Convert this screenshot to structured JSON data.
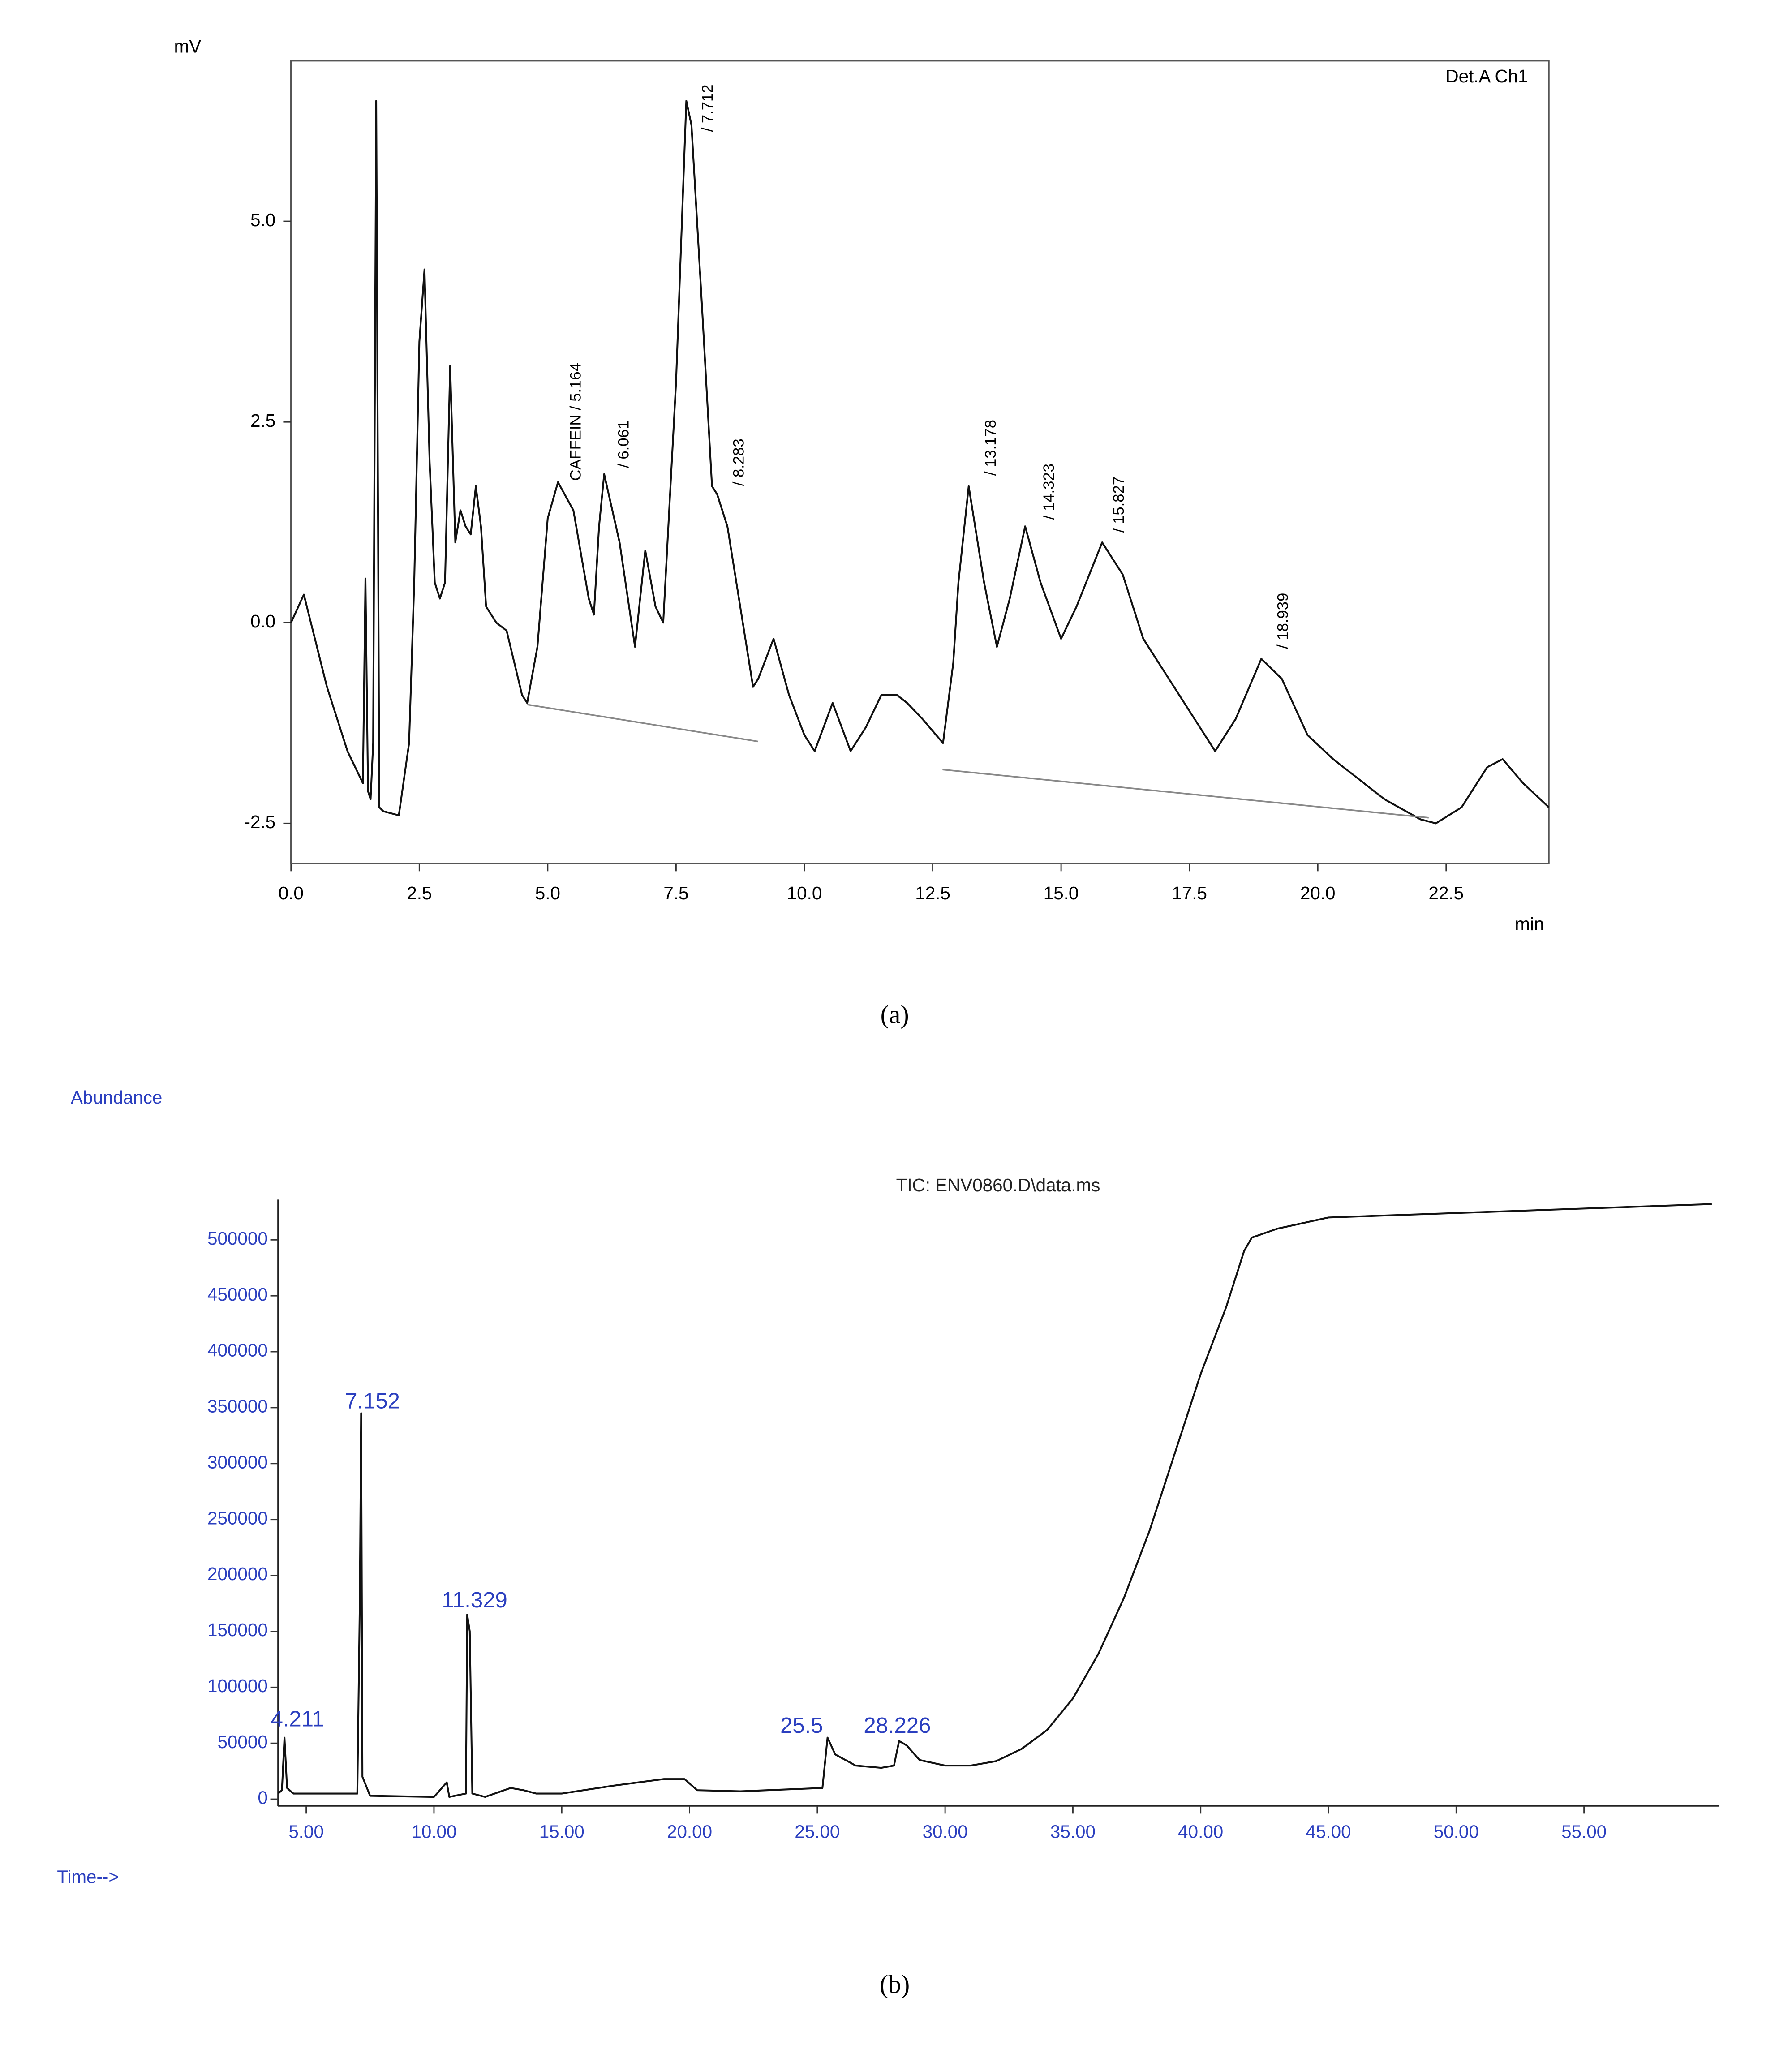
{
  "chart_data": [
    {
      "type": "line",
      "y_label": "mV",
      "x_label": "min",
      "channel_label": "Det.A Ch1",
      "caption": "(a)",
      "xlim": [
        0,
        24.5
      ],
      "ylim": [
        -3,
        7
      ],
      "xticks": [
        {
          "value": 0,
          "label": "0.0"
        },
        2.5,
        {
          "value": 5,
          "label": "5.0"
        },
        7.5,
        {
          "value": 10,
          "label": "10.0"
        },
        12.5,
        {
          "value": 15,
          "label": "15.0"
        },
        17.5,
        {
          "value": 20,
          "label": "20.0"
        },
        22.5
      ],
      "yticks": [
        -2.5,
        {
          "value": 0,
          "label": "0.0"
        },
        2.5,
        {
          "value": 5,
          "label": "5.0"
        }
      ],
      "frame": true,
      "peak_labels": [
        "CAFFEIN / 5.164",
        "/ 6.061",
        "/ 7.712",
        "/ 8.283",
        "/ 13.178",
        "/ 14.323",
        "/ 15.827",
        "/ 18.939"
      ],
      "series": [
        {
          "color": "#111111",
          "x": [
            0,
            0.25,
            0.7,
            1.1,
            1.4,
            1.45,
            1.5,
            1.55,
            1.6,
            1.66,
            1.72,
            1.8,
            2.1,
            2.3,
            2.4,
            2.5,
            2.6,
            2.7,
            2.8,
            2.9,
            3.0,
            3.1,
            3.2,
            3.3,
            3.4,
            3.5,
            3.6,
            3.7,
            3.8,
            4.0,
            4.2,
            4.5,
            4.6,
            4.8,
            5.0,
            5.2,
            5.5,
            5.8,
            5.9,
            6.0,
            6.1,
            6.4,
            6.7,
            6.9,
            7.1,
            7.25,
            7.5,
            7.7,
            7.8,
            8.0,
            8.2,
            8.3,
            8.5,
            9.0,
            9.1,
            9.4,
            9.7,
            10.0,
            10.2,
            10.55,
            10.9,
            11.2,
            11.5,
            11.8,
            12.0,
            12.3,
            12.7,
            12.9,
            13.0,
            13.2,
            13.5,
            13.75,
            14.0,
            14.3,
            14.6,
            15.0,
            15.3,
            15.8,
            16.2,
            16.6,
            17.0,
            17.5,
            18.0,
            18.4,
            18.9,
            19.3,
            19.8,
            20.3,
            20.7,
            21.3,
            22.0,
            22.3,
            22.8,
            23.3,
            23.6,
            24.0,
            24.5
          ],
          "values": [
            0,
            0.35,
            -0.8,
            -1.6,
            -2.0,
            0.55,
            -2.1,
            -2.2,
            -1.5,
            6.5,
            -2.3,
            -2.35,
            -2.4,
            -1.5,
            0.5,
            3.5,
            4.4,
            2.0,
            0.5,
            0.3,
            0.5,
            3.2,
            1.0,
            1.4,
            1.2,
            1.1,
            1.7,
            1.2,
            0.2,
            0,
            -0.1,
            -0.9,
            -1.0,
            -0.3,
            1.3,
            1.75,
            1.4,
            0.3,
            0.1,
            1.2,
            1.85,
            1.0,
            -0.3,
            0.9,
            0.2,
            0,
            3.0,
            6.5,
            6.2,
            4.0,
            1.7,
            1.6,
            1.2,
            -0.8,
            -0.7,
            -0.2,
            -0.9,
            -1.4,
            -1.6,
            -1.0,
            -1.6,
            -1.3,
            -0.9,
            -0.9,
            -1.0,
            -1.2,
            -1.5,
            -0.5,
            0.5,
            1.7,
            0.5,
            -0.3,
            0.3,
            1.2,
            0.5,
            -0.2,
            0.2,
            1.0,
            0.6,
            -0.2,
            -0.6,
            -1.1,
            -1.6,
            -1.2,
            -0.45,
            -0.7,
            -1.4,
            -1.7,
            -1.9,
            -2.2,
            -2.45,
            -2.5,
            -2.3,
            -1.8,
            -1.7,
            -2.0,
            -2.3
          ]
        },
        {
          "color": "#888888",
          "x": [
            4.6,
            9.1
          ],
          "values": [
            -1.02,
            -1.48
          ]
        },
        {
          "color": "#888888",
          "x": [
            12.69,
            22.16
          ],
          "values": [
            -1.83,
            -2.43
          ]
        }
      ]
    },
    {
      "type": "line",
      "y_label": "Abundance",
      "x_label": "Time-->",
      "title": "TIC: ENV0860.D\\data.ms",
      "caption": "(b)",
      "xlim": [
        3.9,
        60.3
      ],
      "ylim": [
        -6000,
        536000
      ],
      "xticks": [
        {
          "value": 5,
          "label": "5.00"
        },
        {
          "value": 10,
          "label": "10.00"
        },
        {
          "value": 15,
          "label": "15.00"
        },
        {
          "value": 20,
          "label": "20.00"
        },
        {
          "value": 25,
          "label": "25.00"
        },
        {
          "value": 30,
          "label": "30.00"
        },
        {
          "value": 35,
          "label": "35.00"
        },
        {
          "value": 40,
          "label": "40.00"
        },
        {
          "value": 45,
          "label": "45.00"
        },
        {
          "value": 50,
          "label": "50.00"
        },
        {
          "value": 55,
          "label": "55.00"
        }
      ],
      "yticks": [
        0,
        50000,
        100000,
        150000,
        200000,
        250000,
        300000,
        350000,
        400000,
        450000,
        500000
      ],
      "frame": false,
      "peak_labels": [
        "4.211",
        "7.152",
        "11.329",
        "25.5",
        "28.226"
      ],
      "series": [
        {
          "color": "#111111",
          "x": [
            3.9,
            4.05,
            4.15,
            4.25,
            4.5,
            7.0,
            7.1,
            7.15,
            7.2,
            7.5,
            10.0,
            10.5,
            10.6,
            11.25,
            11.3,
            11.4,
            11.5,
            12.0,
            13.0,
            13.5,
            14.0,
            15.0,
            17.0,
            19.0,
            19.8,
            20.3,
            22.0,
            25.2,
            25.4,
            25.7,
            26.5,
            27.5,
            28.0,
            28.2,
            28.5,
            29.0,
            30.0,
            31.0,
            32.0,
            33.0,
            34.0,
            35.0,
            36.0,
            37.0,
            38.0,
            39.0,
            40.0,
            41.0,
            41.7,
            42.0,
            43.0,
            45.0,
            50.0,
            55.0,
            60.0
          ],
          "values": [
            5000,
            8000,
            55000,
            10000,
            5000,
            5000,
            180000,
            345000,
            20000,
            3000,
            2000,
            15000,
            2000,
            5000,
            165000,
            150000,
            5000,
            2000,
            10000,
            8000,
            5000,
            5000,
            12000,
            18000,
            18000,
            8000,
            7000,
            10000,
            55000,
            40000,
            30000,
            28000,
            30000,
            52000,
            48000,
            35000,
            30000,
            30000,
            34000,
            45000,
            62000,
            90000,
            130000,
            180000,
            240000,
            310000,
            380000,
            440000,
            490000,
            502000,
            510000,
            520000,
            524000,
            528000,
            532000
          ]
        }
      ]
    }
  ]
}
